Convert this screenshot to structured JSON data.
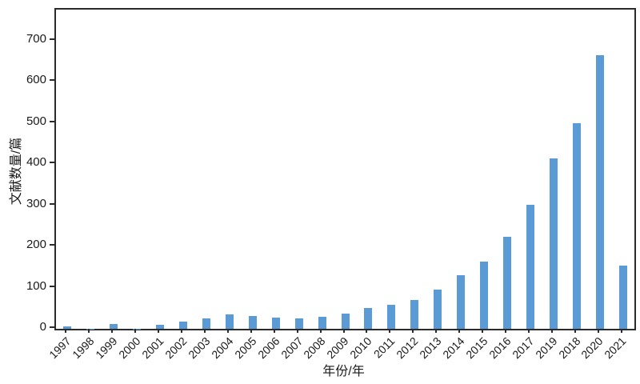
{
  "chart_data": {
    "type": "bar",
    "title": "",
    "xlabel": "年份/年",
    "ylabel": "文献数量/篇",
    "categories": [
      "1997",
      "1998",
      "1999",
      "2000",
      "2001",
      "2002",
      "2003",
      "2004",
      "2005",
      "2006",
      "2007",
      "2008",
      "2009",
      "2010",
      "2011",
      "2012",
      "2013",
      "2014",
      "2015",
      "2016",
      "2017",
      "2019",
      "2018",
      "2020",
      "2021"
    ],
    "values": [
      5,
      1,
      11,
      1,
      9,
      17,
      25,
      35,
      32,
      28,
      26,
      29,
      37,
      50,
      59,
      70,
      95,
      131,
      163,
      223,
      302,
      413,
      499,
      665,
      153
    ],
    "ylim": [
      0,
      775
    ],
    "yticks": [
      0,
      100,
      200,
      300,
      400,
      500,
      600,
      700
    ],
    "grid": "off",
    "legend": "none",
    "bar_color": "#5b9bd5",
    "axis_color": "#2b2b2b"
  }
}
